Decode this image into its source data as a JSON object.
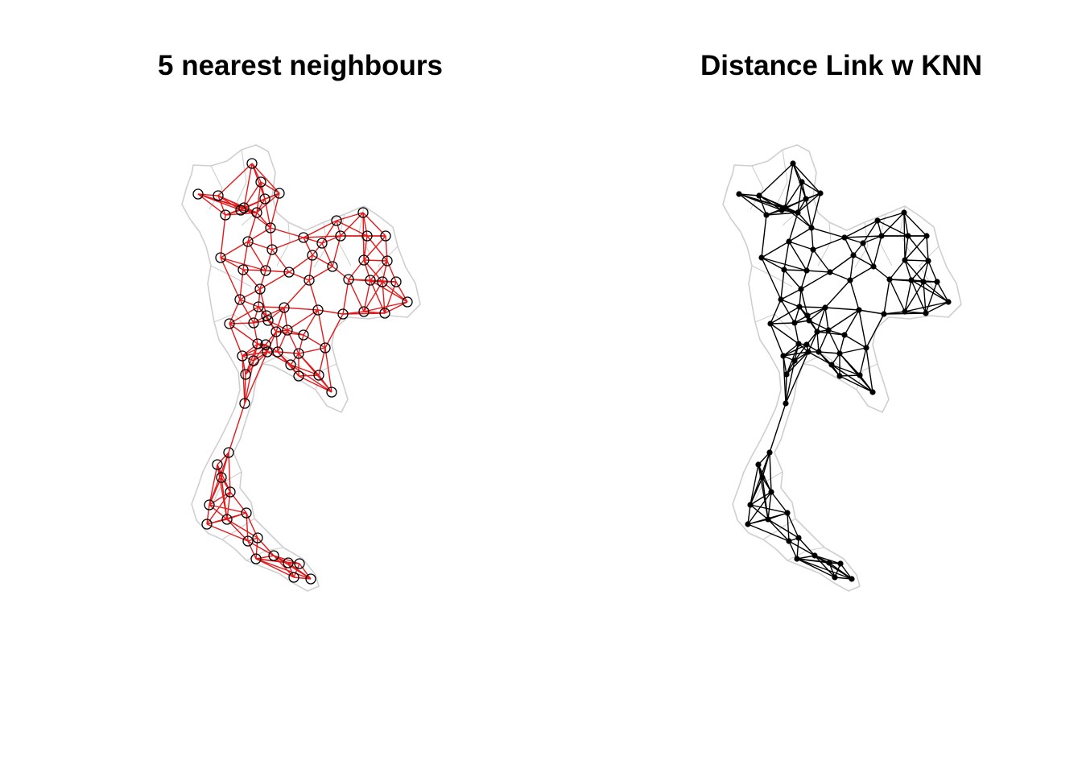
{
  "panels": [
    {
      "id": "left",
      "title": "5 nearest neighbours",
      "edge_color": "#e31a1c",
      "node_style": "open-circle",
      "node_color": "#000000"
    },
    {
      "id": "right",
      "title": "Distance Link w KNN",
      "edge_color": "#000000",
      "node_style": "filled-dot",
      "node_color": "#000000"
    }
  ],
  "basemap": {
    "outline_color": "#cfcfcf",
    "background": "#ffffff"
  }
}
